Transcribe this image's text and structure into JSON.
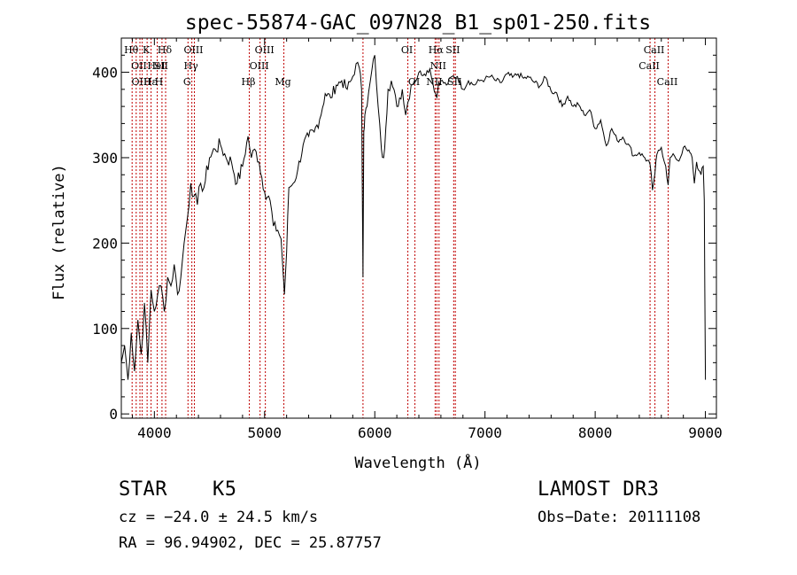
{
  "chart_data": {
    "type": "line",
    "title": "spec-55874-GAC_097N28_B1_sp01-250.fits",
    "xlabel": "Wavelength (Å)",
    "ylabel": "Flux (relative)",
    "xlim": [
      3700,
      9100
    ],
    "ylim": [
      -5,
      440
    ],
    "xticks": [
      4000,
      5000,
      6000,
      7000,
      8000,
      9000
    ],
    "yticks": [
      0,
      100,
      200,
      300,
      400
    ],
    "grid": false,
    "legend": "none",
    "series": [
      {
        "name": "flux",
        "x": [
          3700,
          3730,
          3760,
          3790,
          3820,
          3850,
          3880,
          3910,
          3940,
          3970,
          4000,
          4030,
          4060,
          4090,
          4120,
          4150,
          4180,
          4210,
          4240,
          4270,
          4300,
          4330,
          4360,
          4390,
          4420,
          4450,
          4500,
          4550,
          4600,
          4650,
          4700,
          4750,
          4800,
          4850,
          4880,
          4910,
          4950,
          5000,
          5050,
          5080,
          5120,
          5150,
          5180,
          5200,
          5220,
          5260,
          5300,
          5350,
          5400,
          5450,
          5500,
          5550,
          5600,
          5650,
          5700,
          5750,
          5800,
          5830,
          5860,
          5880,
          5893,
          5900,
          5910,
          5930,
          5960,
          6000,
          6030,
          6060,
          6080,
          6100,
          6120,
          6150,
          6200,
          6250,
          6280,
          6300,
          6330,
          6360,
          6400,
          6450,
          6500,
          6530,
          6563,
          6580,
          6600,
          6650,
          6700,
          6750,
          6800,
          6850,
          6900,
          6950,
          7000,
          7050,
          7100,
          7150,
          7200,
          7250,
          7300,
          7350,
          7400,
          7450,
          7500,
          7550,
          7600,
          7650,
          7700,
          7750,
          7800,
          7850,
          7900,
          7950,
          8000,
          8050,
          8100,
          8150,
          8200,
          8250,
          8300,
          8350,
          8400,
          8450,
          8498,
          8520,
          8542,
          8560,
          8600,
          8640,
          8662,
          8680,
          8720,
          8760,
          8800,
          8840,
          8860,
          8880,
          8900,
          8920,
          8940,
          8960,
          8980,
          8990,
          9000
        ],
        "y": [
          60,
          80,
          40,
          95,
          50,
          110,
          70,
          130,
          60,
          145,
          120,
          140,
          150,
          120,
          160,
          150,
          175,
          140,
          160,
          200,
          230,
          270,
          255,
          245,
          270,
          265,
          300,
          310,
          315,
          300,
          295,
          270,
          290,
          325,
          300,
          310,
          295,
          260,
          250,
          220,
          215,
          205,
          140,
          190,
          265,
          270,
          285,
          315,
          325,
          330,
          345,
          375,
          370,
          385,
          390,
          380,
          395,
          410,
          405,
          380,
          160,
          330,
          350,
          360,
          390,
          420,
          360,
          310,
          300,
          335,
          380,
          390,
          360,
          380,
          350,
          365,
          385,
          390,
          400,
          398,
          404,
          385,
          370,
          388,
          390,
          385,
          395,
          395,
          380,
          390,
          385,
          390,
          392,
          395,
          390,
          388,
          398,
          394,
          398,
          393,
          394,
          388,
          384,
          394,
          378,
          376,
          360,
          372,
          360,
          362,
          350,
          356,
          334,
          344,
          314,
          334,
          320,
          324,
          316,
          302,
          306,
          300,
          292,
          262,
          282,
          304,
          312,
          290,
          268,
          300,
          302,
          296,
          312,
          308,
          306,
          300,
          270,
          295,
          285,
          280,
          290,
          250,
          40
        ],
        "color": "#000000"
      }
    ],
    "line_markers": [
      {
        "x": 3798,
        "labels": [
          "Hθ"
        ],
        "tier": 1
      },
      {
        "x": 3835,
        "labels": [],
        "tier": 0
      },
      {
        "x": 3869,
        "labels": [
          "OII"
        ],
        "tier": 2
      },
      {
        "x": 3889,
        "labels": [
          "OIII"
        ],
        "tier": 3
      },
      {
        "x": 3934,
        "labels": [
          "K"
        ],
        "tier": 1
      },
      {
        "x": 3970,
        "labels": [
          "Hε",
          "H"
        ],
        "tier": 3
      },
      {
        "x": 4026,
        "labels": [
          "HeI"
        ],
        "tier": 2
      },
      {
        "x": 4069,
        "labels": [
          "SII"
        ],
        "tier": 2
      },
      {
        "x": 4102,
        "labels": [
          "Hδ"
        ],
        "tier": 1
      },
      {
        "x": 4305,
        "labels": [
          "G"
        ],
        "tier": 3
      },
      {
        "x": 4340,
        "labels": [
          "Hγ"
        ],
        "tier": 2
      },
      {
        "x": 4363,
        "labels": [
          "OIII"
        ],
        "tier": 1
      },
      {
        "x": 4861,
        "labels": [
          "Hβ"
        ],
        "tier": 3
      },
      {
        "x": 4959,
        "labels": [
          "OIII"
        ],
        "tier": 2
      },
      {
        "x": 5007,
        "labels": [
          "OIII"
        ],
        "tier": 1
      },
      {
        "x": 5175,
        "labels": [
          "Mg"
        ],
        "tier": 3
      },
      {
        "x": 5893,
        "labels": [],
        "tier": 0
      },
      {
        "x": 6300,
        "labels": [
          "OI"
        ],
        "tier": 1
      },
      {
        "x": 6364,
        "labels": [
          "OI"
        ],
        "tier": 3
      },
      {
        "x": 6548,
        "labels": [
          "NII"
        ],
        "tier": 3
      },
      {
        "x": 6563,
        "labels": [
          "Hα"
        ],
        "tier": 1
      },
      {
        "x": 6583,
        "labels": [
          "NII"
        ],
        "tier": 2
      },
      {
        "x": 6716,
        "labels": [
          "SII"
        ],
        "tier": 1
      },
      {
        "x": 6731,
        "labels": [
          "SII"
        ],
        "tier": 3
      },
      {
        "x": 8498,
        "labels": [
          "CaII"
        ],
        "tier": 2
      },
      {
        "x": 8542,
        "labels": [
          "CaII"
        ],
        "tier": 1
      },
      {
        "x": 8662,
        "labels": [
          "CaII"
        ],
        "tier": 3
      }
    ]
  },
  "info": {
    "object_class": "STAR",
    "subclass": "K5",
    "redshift": "cz = −24.0 ± 24.5 km/s",
    "coords": "RA =  96.94902, DEC =  25.87757",
    "survey": "LAMOST DR3",
    "obs_date": "Obs−Date: 20111108"
  }
}
